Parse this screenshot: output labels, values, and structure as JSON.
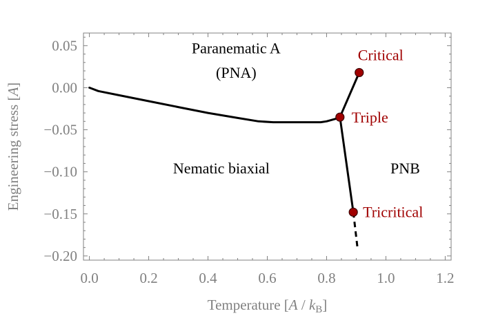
{
  "chart_data": {
    "type": "line",
    "xlabel_main": "Temperature [",
    "xlabel_A": "A",
    "xlabel_sep": " / ",
    "xlabel_k": "k",
    "xlabel_B": "B",
    "xlabel_close": "]",
    "ylabel_main": "Engineering stress [",
    "ylabel_A": "A",
    "ylabel_close": "]",
    "xlim": [
      -0.02,
      1.22
    ],
    "ylim": [
      -0.205,
      0.065
    ],
    "x_ticks": [
      {
        "value": 0.0,
        "label": "0.0"
      },
      {
        "value": 0.2,
        "label": "0.2"
      },
      {
        "value": 0.4,
        "label": "0.4"
      },
      {
        "value": 0.6,
        "label": "0.6"
      },
      {
        "value": 0.8,
        "label": "0.8"
      },
      {
        "value": 1.0,
        "label": "1.0"
      },
      {
        "value": 1.2,
        "label": "1.2"
      }
    ],
    "y_ticks": [
      {
        "value": 0.05,
        "label": "0.05"
      },
      {
        "value": 0.0,
        "label": "0.00"
      },
      {
        "value": -0.05,
        "label": "−0.05"
      },
      {
        "value": -0.1,
        "label": "−0.10"
      },
      {
        "value": -0.15,
        "label": "−0.15"
      },
      {
        "value": -0.2,
        "label": "−0.20"
      }
    ],
    "series": [
      {
        "style": "solid",
        "x": [
          0.0,
          0.03,
          0.1,
          0.2,
          0.3,
          0.4,
          0.5,
          0.57,
          0.62,
          0.7,
          0.78,
          0.8,
          0.83,
          0.845
        ],
        "y": [
          0.0,
          -0.004,
          -0.009,
          -0.016,
          -0.023,
          -0.03,
          -0.036,
          -0.04,
          -0.041,
          -0.041,
          -0.041,
          -0.04,
          -0.037,
          -0.035
        ]
      },
      {
        "style": "solid",
        "x": [
          0.845,
          0.91
        ],
        "y": [
          -0.035,
          0.018
        ]
      },
      {
        "style": "solid",
        "x": [
          0.845,
          0.89
        ],
        "y": [
          -0.035,
          -0.148
        ]
      },
      {
        "style": "dashed",
        "x": [
          0.89,
          0.905
        ],
        "y": [
          -0.148,
          -0.193
        ]
      }
    ],
    "points": [
      {
        "name": "Critical",
        "x": 0.91,
        "y": 0.018
      },
      {
        "name": "Triple",
        "x": 0.845,
        "y": -0.035
      },
      {
        "name": "Tricritical",
        "x": 0.89,
        "y": -0.148
      }
    ],
    "regions": [
      {
        "label": "Paranematic A",
        "x": 0.495,
        "y": 0.041
      },
      {
        "label": "(PNA)",
        "x": 0.495,
        "y": 0.012
      },
      {
        "label": "Nematic biaxial",
        "x": 0.445,
        "y": -0.102
      },
      {
        "label": "PNB",
        "x": 1.065,
        "y": -0.102
      }
    ],
    "colors": {
      "curve": "#000000",
      "point_fill": "#a00000",
      "point_label": "#a00000",
      "axis": "#808080"
    },
    "grid": false
  }
}
